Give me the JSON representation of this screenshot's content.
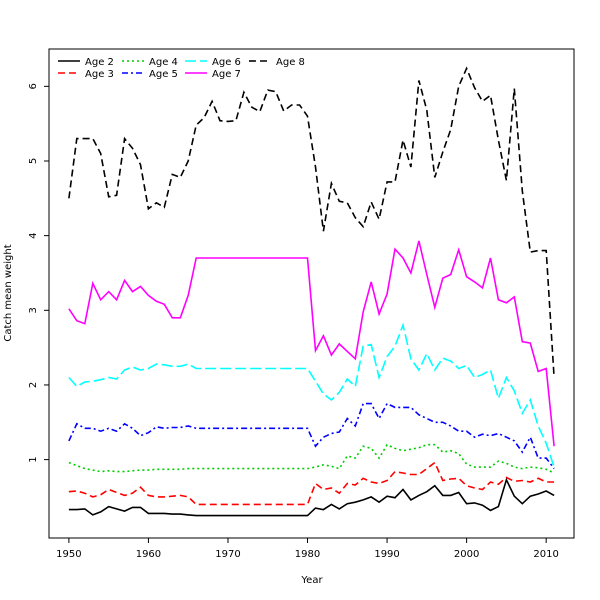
{
  "chart_data": {
    "type": "line",
    "title": "",
    "xlabel": "Year",
    "ylabel": "Catch mean weight",
    "xlim": [
      1947.5,
      2013.5
    ],
    "ylim": [
      -0.05,
      6.5
    ],
    "x_ticks": [
      1950,
      1960,
      1970,
      1980,
      1990,
      2000,
      2010
    ],
    "y_ticks": [
      1,
      2,
      3,
      4,
      5,
      6
    ],
    "grid": false,
    "legend_position": "top-left",
    "x": [
      1950,
      1951,
      1952,
      1953,
      1954,
      1955,
      1956,
      1957,
      1958,
      1959,
      1960,
      1961,
      1962,
      1963,
      1964,
      1965,
      1966,
      1967,
      1968,
      1969,
      1970,
      1971,
      1972,
      1973,
      1974,
      1975,
      1976,
      1977,
      1978,
      1979,
      1980,
      1981,
      1982,
      1983,
      1984,
      1985,
      1986,
      1987,
      1988,
      1989,
      1990,
      1991,
      1992,
      1993,
      1994,
      1995,
      1996,
      1997,
      1998,
      1999,
      2000,
      2001,
      2002,
      2003,
      2004,
      2005,
      2006,
      2007,
      2008,
      2009,
      2010,
      2011
    ],
    "series": [
      {
        "name": "Age 2",
        "color": "#000000",
        "dash": "solid",
        "values": [
          0.33,
          0.33,
          0.34,
          0.26,
          0.3,
          0.37,
          0.34,
          0.31,
          0.36,
          0.36,
          0.28,
          0.28,
          0.28,
          0.27,
          0.27,
          0.26,
          0.25,
          0.25,
          0.25,
          0.25,
          0.25,
          0.25,
          0.25,
          0.25,
          0.25,
          0.25,
          0.25,
          0.25,
          0.25,
          0.25,
          0.25,
          0.35,
          0.33,
          0.4,
          0.34,
          0.41,
          0.43,
          0.46,
          0.5,
          0.43,
          0.51,
          0.49,
          0.6,
          0.46,
          0.52,
          0.57,
          0.65,
          0.52,
          0.52,
          0.56,
          0.41,
          0.42,
          0.39,
          0.32,
          0.37,
          0.73,
          0.51,
          0.41,
          0.51,
          0.54,
          0.58,
          0.52
        ]
      },
      {
        "name": "Age 3",
        "color": "#ff0000",
        "dash": "dashed",
        "values": [
          0.57,
          0.58,
          0.55,
          0.5,
          0.53,
          0.6,
          0.56,
          0.52,
          0.55,
          0.63,
          0.52,
          0.5,
          0.5,
          0.51,
          0.52,
          0.5,
          0.4,
          0.4,
          0.4,
          0.4,
          0.4,
          0.4,
          0.4,
          0.4,
          0.4,
          0.4,
          0.4,
          0.4,
          0.4,
          0.4,
          0.4,
          0.68,
          0.6,
          0.62,
          0.55,
          0.68,
          0.66,
          0.75,
          0.7,
          0.68,
          0.72,
          0.84,
          0.82,
          0.8,
          0.8,
          0.88,
          0.96,
          0.72,
          0.74,
          0.75,
          0.65,
          0.62,
          0.6,
          0.7,
          0.67,
          0.76,
          0.71,
          0.72,
          0.7,
          0.75,
          0.7,
          0.7
        ]
      },
      {
        "name": "Age 4",
        "color": "#00cd00",
        "dash": "dotted",
        "values": [
          0.96,
          0.92,
          0.88,
          0.86,
          0.84,
          0.85,
          0.84,
          0.84,
          0.85,
          0.86,
          0.86,
          0.87,
          0.87,
          0.87,
          0.87,
          0.88,
          0.88,
          0.88,
          0.88,
          0.88,
          0.88,
          0.88,
          0.88,
          0.88,
          0.88,
          0.88,
          0.88,
          0.88,
          0.88,
          0.88,
          0.88,
          0.9,
          0.93,
          0.91,
          0.88,
          1.05,
          1.02,
          1.18,
          1.15,
          1.02,
          1.2,
          1.15,
          1.12,
          1.14,
          1.16,
          1.2,
          1.2,
          1.1,
          1.12,
          1.08,
          0.94,
          0.9,
          0.9,
          0.9,
          0.98,
          0.95,
          0.9,
          0.88,
          0.9,
          0.89,
          0.87,
          0.82
        ]
      },
      {
        "name": "Age 5",
        "color": "#0000ff",
        "dash": "dashdot",
        "values": [
          1.25,
          1.48,
          1.42,
          1.42,
          1.38,
          1.42,
          1.38,
          1.48,
          1.42,
          1.32,
          1.36,
          1.44,
          1.42,
          1.43,
          1.43,
          1.45,
          1.42,
          1.42,
          1.42,
          1.42,
          1.42,
          1.42,
          1.42,
          1.42,
          1.42,
          1.42,
          1.42,
          1.42,
          1.42,
          1.42,
          1.42,
          1.18,
          1.3,
          1.35,
          1.37,
          1.55,
          1.45,
          1.75,
          1.75,
          1.55,
          1.75,
          1.7,
          1.7,
          1.7,
          1.6,
          1.55,
          1.5,
          1.5,
          1.45,
          1.38,
          1.38,
          1.3,
          1.34,
          1.32,
          1.35,
          1.3,
          1.25,
          1.1,
          1.3,
          1.02,
          1.02,
          0.88
        ]
      },
      {
        "name": "Age 6",
        "color": "#00ffff",
        "dash": "longdash",
        "values": [
          2.1,
          1.98,
          2.04,
          2.05,
          2.07,
          2.1,
          2.08,
          2.2,
          2.24,
          2.2,
          2.22,
          2.28,
          2.27,
          2.25,
          2.25,
          2.28,
          2.22,
          2.22,
          2.22,
          2.22,
          2.22,
          2.22,
          2.22,
          2.22,
          2.22,
          2.22,
          2.22,
          2.22,
          2.22,
          2.22,
          2.22,
          2.05,
          1.88,
          1.8,
          1.9,
          2.08,
          1.98,
          2.52,
          2.54,
          2.1,
          2.38,
          2.52,
          2.8,
          2.35,
          2.2,
          2.42,
          2.2,
          2.36,
          2.32,
          2.22,
          2.26,
          2.1,
          2.14,
          2.2,
          1.82,
          2.1,
          1.92,
          1.62,
          1.8,
          1.45,
          1.22,
          0.9
        ]
      },
      {
        "name": "Age 7",
        "color": "#ff00ff",
        "dash": "solid",
        "values": [
          3.02,
          2.86,
          2.82,
          3.36,
          3.14,
          3.25,
          3.14,
          3.4,
          3.25,
          3.32,
          3.2,
          3.12,
          3.08,
          2.9,
          2.9,
          3.2,
          3.7,
          3.7,
          3.7,
          3.7,
          3.7,
          3.7,
          3.7,
          3.7,
          3.7,
          3.7,
          3.7,
          3.7,
          3.7,
          3.7,
          3.7,
          2.46,
          2.66,
          2.4,
          2.55,
          2.45,
          2.35,
          2.98,
          3.38,
          2.95,
          3.22,
          3.82,
          3.7,
          3.5,
          3.93,
          3.48,
          3.04,
          3.43,
          3.48,
          3.81,
          3.45,
          3.38,
          3.3,
          3.7,
          3.14,
          3.1,
          3.18,
          2.58,
          2.56,
          2.18,
          2.22,
          1.18
        ]
      },
      {
        "name": "Age 8",
        "color": "#000000",
        "dash": "dashed",
        "values": [
          4.5,
          5.3,
          5.3,
          5.3,
          5.1,
          4.52,
          4.54,
          5.3,
          5.17,
          4.95,
          4.36,
          4.44,
          4.38,
          4.82,
          4.78,
          5.0,
          5.48,
          5.58,
          5.8,
          5.54,
          5.53,
          5.54,
          5.92,
          5.72,
          5.66,
          5.95,
          5.93,
          5.67,
          5.75,
          5.75,
          5.6,
          4.92,
          4.06,
          4.7,
          4.46,
          4.44,
          4.24,
          4.12,
          4.45,
          4.22,
          4.72,
          4.72,
          5.28,
          4.92,
          6.08,
          5.68,
          4.78,
          5.12,
          5.42,
          6.0,
          6.24,
          5.98,
          5.8,
          5.88,
          5.28,
          4.74,
          5.97,
          4.6,
          3.78,
          3.8,
          3.8,
          2.1
        ]
      }
    ]
  }
}
